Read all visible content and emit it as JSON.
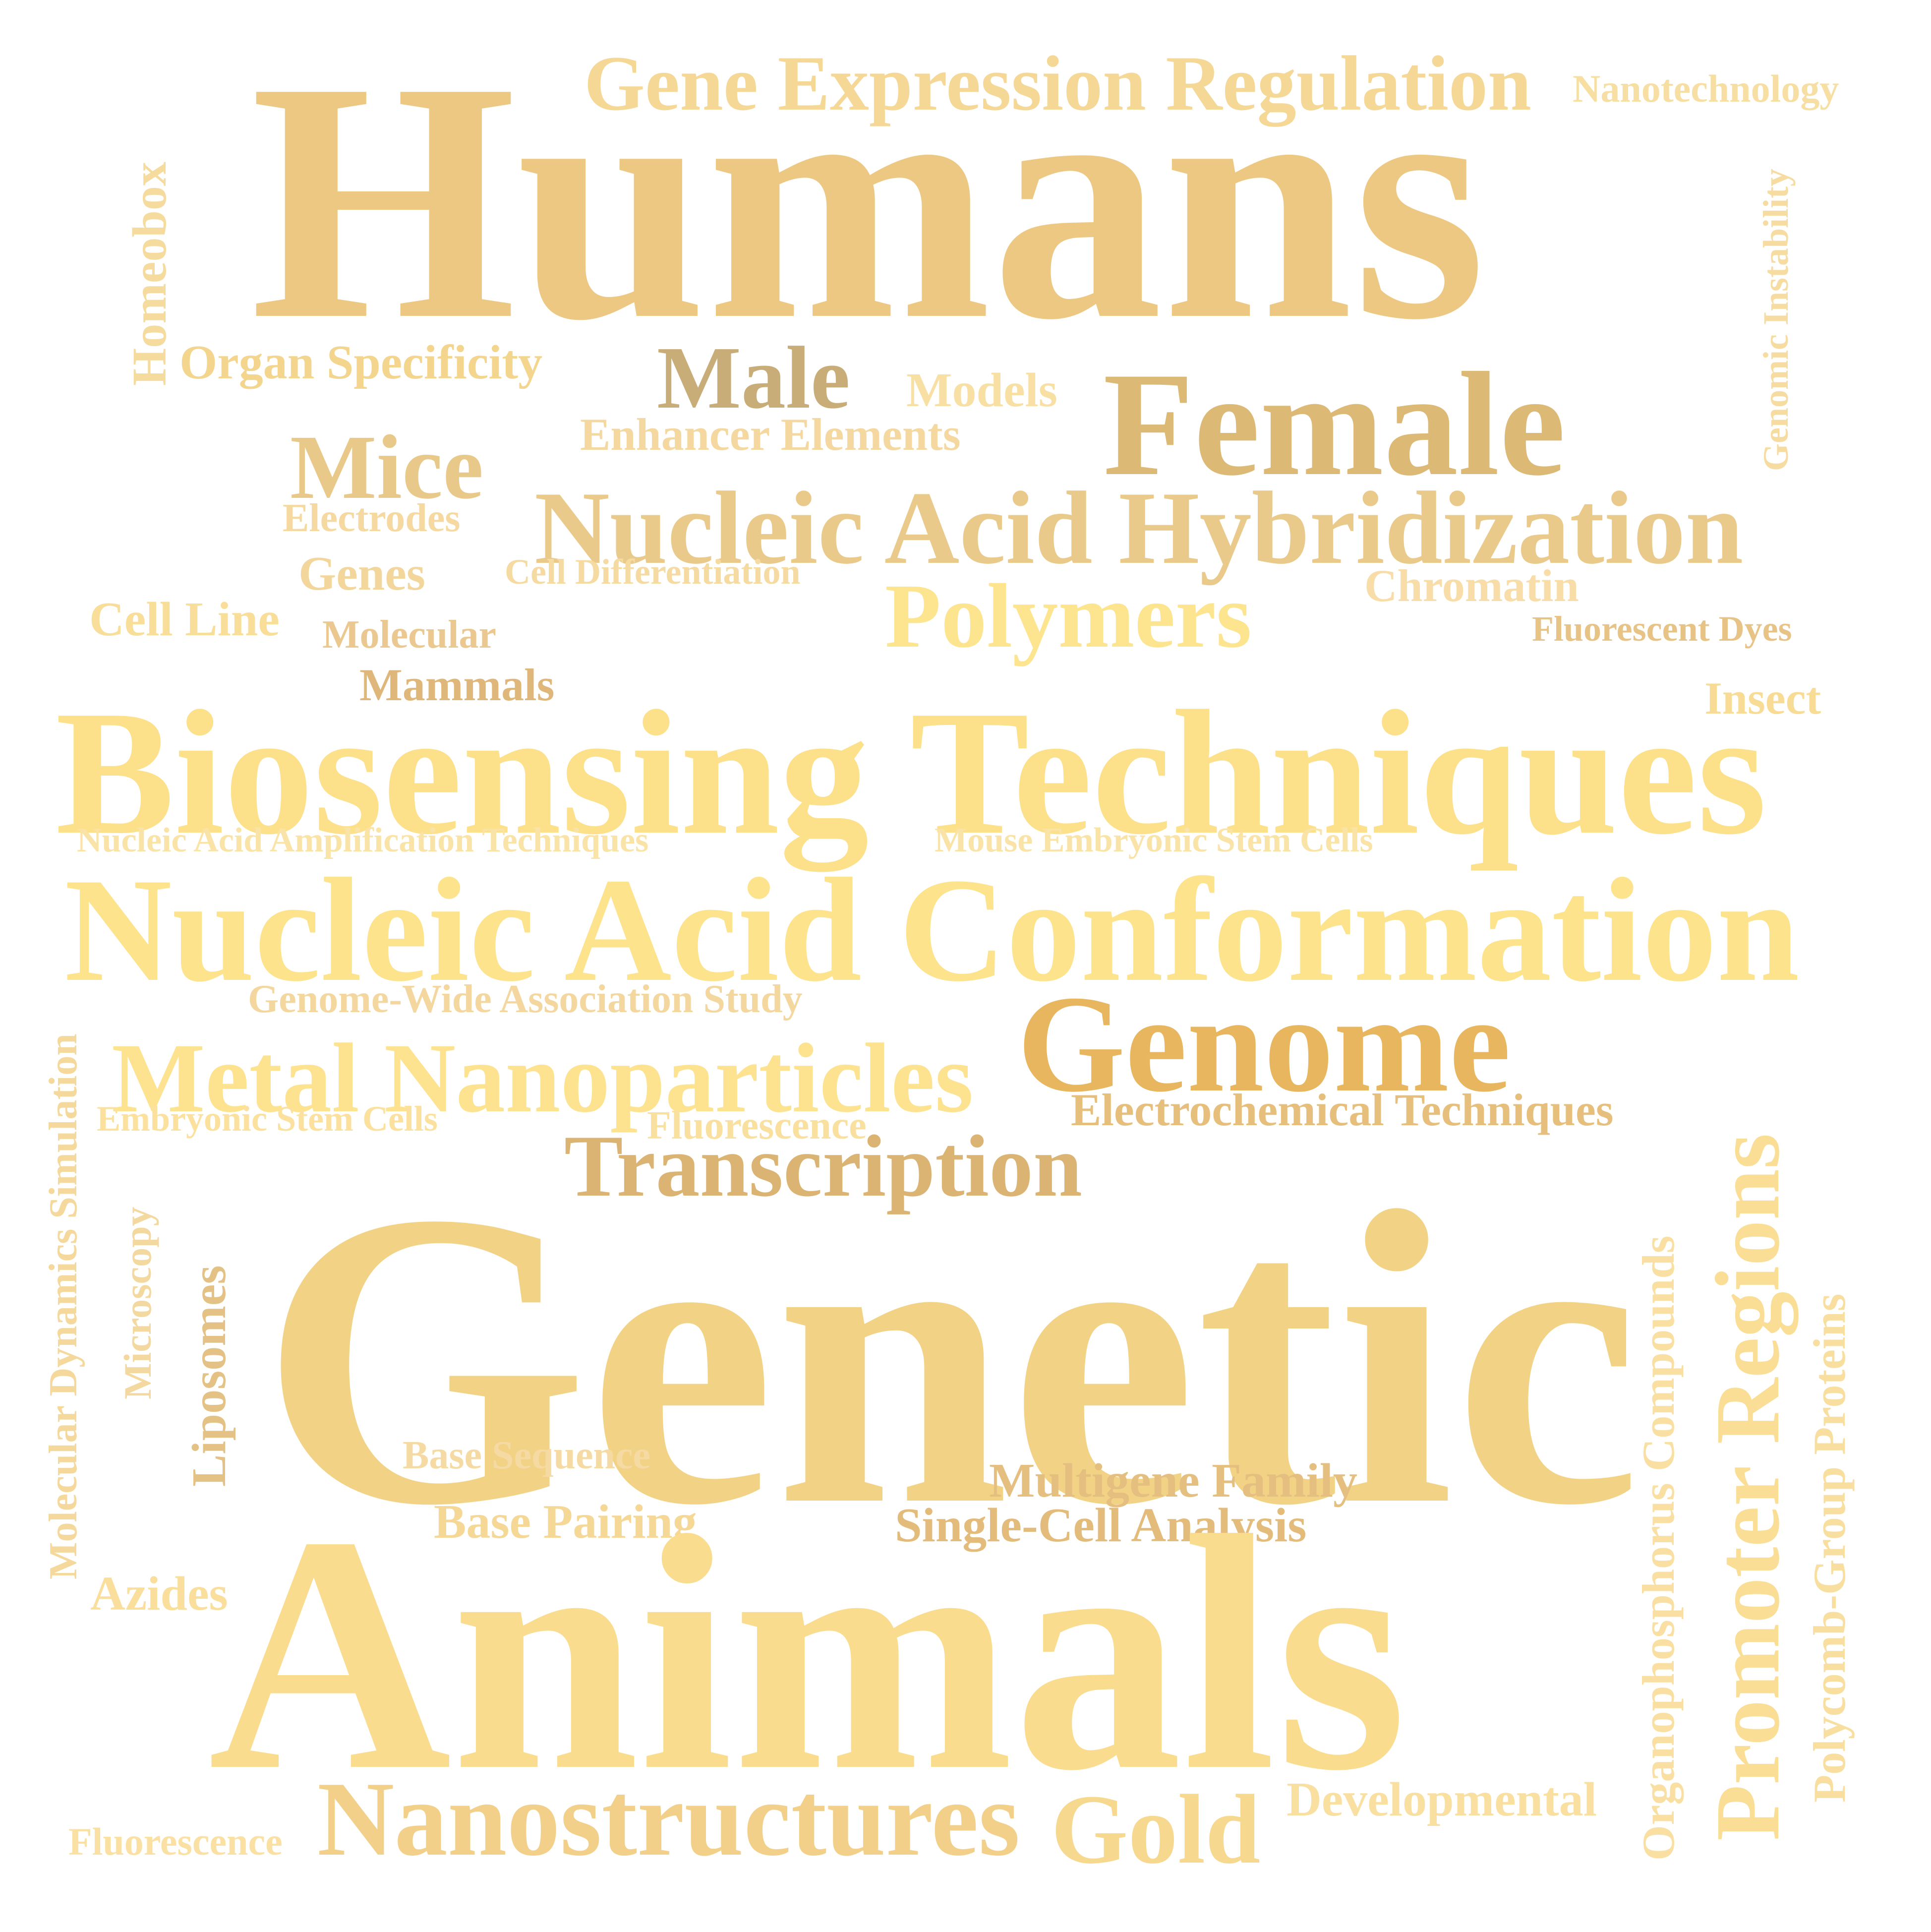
{
  "words": [
    {
      "id": "humans",
      "text": "Humans",
      "color": "#EDC882"
    },
    {
      "id": "gene-expression-regulation",
      "text": "Gene Expression Regulation",
      "color": "#F5D896"
    },
    {
      "id": "nanotechnology",
      "text": "Nanotechnology",
      "color": "#F7DFA3"
    },
    {
      "id": "homeobox",
      "text": "Homeobox",
      "color": "#F6DB9E"
    },
    {
      "id": "genomic-instability",
      "text": "Genomic Instability",
      "color": "#F6DCA0"
    },
    {
      "id": "organ-specificity",
      "text": "Organ Specificity",
      "color": "#F4D58E"
    },
    {
      "id": "male",
      "text": "Male",
      "color": "#C9AD79"
    },
    {
      "id": "models",
      "text": "Models",
      "color": "#F8E0A5"
    },
    {
      "id": "female",
      "text": "Female",
      "color": "#DDB976"
    },
    {
      "id": "enhancer-elements",
      "text": "Enhancer Elements",
      "color": "#F4D8A0"
    },
    {
      "id": "mice",
      "text": "Mice",
      "color": "#E9C98A"
    },
    {
      "id": "electrodes",
      "text": "Electrodes",
      "color": "#F5D9A0"
    },
    {
      "id": "nucleic-acid-hybridization",
      "text": "Nucleic Acid Hybridization",
      "color": "#EACA8A"
    },
    {
      "id": "genes",
      "text": "Genes",
      "color": "#F3D69C"
    },
    {
      "id": "cell-differentiation",
      "text": "Cell Differentiation",
      "color": "#F5DAA2"
    },
    {
      "id": "chromatin",
      "text": "Chromatin",
      "color": "#F8DDA8"
    },
    {
      "id": "cell-line",
      "text": "Cell Line",
      "color": "#F8DE98"
    },
    {
      "id": "molecular",
      "text": "Molecular",
      "color": "#EAC88F"
    },
    {
      "id": "polymers",
      "text": "Polymers",
      "color": "#FDE590"
    },
    {
      "id": "fluorescent-dyes",
      "text": "Fluorescent Dyes",
      "color": "#E7C385"
    },
    {
      "id": "mammals",
      "text": "Mammals",
      "color": "#E0B77A"
    },
    {
      "id": "insect",
      "text": "Insect",
      "color": "#F8DC95"
    },
    {
      "id": "biosensing-techniques",
      "text": "Biosensing Techniques",
      "color": "#FCE08A"
    },
    {
      "id": "nucleic-acid-amplification-techniques",
      "text": "Nucleic Acid Amplification Techniques",
      "color": "#FAE3A6"
    },
    {
      "id": "mouse-embryonic-stem-cells",
      "text": "Mouse Embryonic Stem Cells",
      "color": "#FAE3A6"
    },
    {
      "id": "nucleic-acid-conformation",
      "text": "Nucleic Acid Conformation",
      "color": "#FDE38C"
    },
    {
      "id": "genome-wide-association-study",
      "text": "Genome-Wide Association Study",
      "color": "#F3D79F"
    },
    {
      "id": "genome",
      "text": "Genome",
      "color": "#E8B65E"
    },
    {
      "id": "metal-nanoparticles",
      "text": "Metal Nanoparticles",
      "color": "#FDE38F"
    },
    {
      "id": "electrochemical-techniques",
      "text": "Electrochemical Techniques",
      "color": "#E7BF7D"
    },
    {
      "id": "embryonic-stem-cells",
      "text": "Embryonic Stem Cells",
      "color": "#FBE19D"
    },
    {
      "id": "fluorescence-mid",
      "text": "Fluorescence",
      "color": "#FAE09E"
    },
    {
      "id": "molecular-dynamics-simulation",
      "text": "Molecular Dynamics Simulation",
      "color": "#F5D89B"
    },
    {
      "id": "transcription",
      "text": "Transcription",
      "color": "#DBB474"
    },
    {
      "id": "microscopy",
      "text": "Microscopy",
      "color": "#F3D9A0"
    },
    {
      "id": "liposomes",
      "text": "Liposomes",
      "color": "#E4C184"
    },
    {
      "id": "genetic",
      "text": "Genetic",
      "color": "#F2D386"
    },
    {
      "id": "organophosphorus-compounds",
      "text": "Organophosphorus Compounds",
      "color": "#F9E0A2"
    },
    {
      "id": "promoter-regions",
      "text": "Promoter Regions",
      "color": "#FADE95"
    },
    {
      "id": "polycomb-group-proteins",
      "text": "Polycomb-Group Proteins",
      "color": "#F8DFA0"
    },
    {
      "id": "base-sequence",
      "text": "Base Sequence",
      "color": "#F5DBA3"
    },
    {
      "id": "multigene-family",
      "text": "Multigene Family",
      "color": "#E5BF80"
    },
    {
      "id": "base-pairing",
      "text": "Base Pairing",
      "color": "#F5D796"
    },
    {
      "id": "single-cell-analysis",
      "text": "Single-Cell Analysis",
      "color": "#E3BB7A"
    },
    {
      "id": "azides",
      "text": "Azides",
      "color": "#F9DE9C"
    },
    {
      "id": "animals",
      "text": "Animals",
      "color": "#F9DC8E"
    },
    {
      "id": "nanostructures",
      "text": "Nanostructures",
      "color": "#F3D08A"
    },
    {
      "id": "gold",
      "text": "Gold",
      "color": "#F7D88F"
    },
    {
      "id": "developmental",
      "text": "Developmental",
      "color": "#F9DFA0"
    },
    {
      "id": "fluorescence-bottom",
      "text": "Fluorescence",
      "color": "#FAE0A2"
    }
  ]
}
